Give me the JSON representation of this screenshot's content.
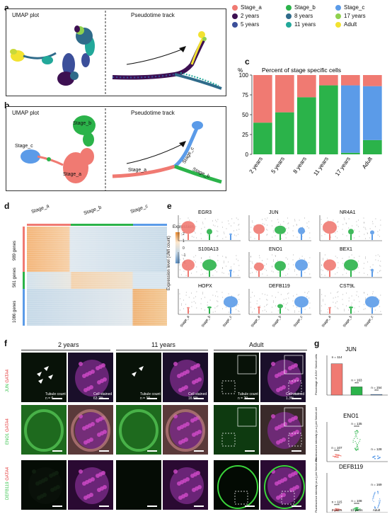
{
  "panels": {
    "a": {
      "label": "a",
      "left_title": "UMAP plot",
      "right_title": "Pseudotime track"
    },
    "b": {
      "label": "b",
      "left_title": "UMAP plot",
      "right_title": "Pseudotime track",
      "umap_labels": [
        "Stage_b",
        "Stage_c",
        "Stage_a"
      ],
      "track_labels": [
        "Stage_a",
        "Stage_c",
        "Stage_b"
      ]
    },
    "c": {
      "label": "c"
    },
    "d": {
      "label": "d",
      "columns": [
        "Stage_a",
        "Stage_b",
        "Stage_c"
      ],
      "row_labels": [
        "989 genes",
        "561 genes",
        "1086 genes"
      ],
      "colorbar_title": "Expression",
      "colorbar_ticks": [
        "2",
        "1",
        "0",
        "-1",
        "-2"
      ]
    },
    "e": {
      "label": "e",
      "ylabel": "Expression level (UMI count)",
      "genes": [
        "EGR3",
        "JUN",
        "NR4A1",
        "S100A13",
        "ENO1",
        "BEX1",
        "HOPX",
        "DEFB119",
        "CST9L"
      ],
      "xticks": [
        "Stage_a",
        "Stage_b",
        "Stage_c"
      ]
    },
    "f": {
      "label": "f",
      "columns": [
        "2 years",
        "11 years",
        "Adult"
      ],
      "row_channels": [
        [
          "GATA4",
          "JUN"
        ],
        [
          "GATA4",
          "ENO1"
        ],
        [
          "GATA4",
          "DEFB119"
        ]
      ],
      "tubule_label": "Tubule count",
      "cell_label": "Cell stained",
      "counts": [
        "n = 6",
        "n = 10",
        "n = 20"
      ],
      "percents": [
        "63.2%",
        "16.6%",
        "1.3%"
      ]
    },
    "g": {
      "label": "g"
    }
  },
  "legend": [
    {
      "label": "Stage_a",
      "color": "#f07a72"
    },
    {
      "label": "Stage_b",
      "color": "#2bb34a"
    },
    {
      "label": "Stage_c",
      "color": "#5b9be8"
    },
    {
      "label": "2 years",
      "color": "#3d1052"
    },
    {
      "label": "8 years",
      "color": "#2f6b8a"
    },
    {
      "label": "17 years",
      "color": "#8fd14f"
    },
    {
      "label": "5 years",
      "color": "#3b4f9a"
    },
    {
      "label": "11 years",
      "color": "#22a89a"
    },
    {
      "label": "Adult",
      "color": "#f2e230"
    }
  ],
  "chart_data": [
    {
      "type": "bar",
      "title": "Percent of stage specific cells",
      "ylabel": "%",
      "categories": [
        "2 years",
        "5 years",
        "8 years",
        "11 years",
        "17 years",
        "Adult"
      ],
      "ylim": [
        0,
        100
      ],
      "yticks": [
        0,
        25,
        50,
        75,
        100
      ],
      "series": [
        {
          "name": "Stage_b",
          "color": "#2bb34a",
          "values": [
            40,
            53,
            72,
            87,
            2,
            18
          ]
        },
        {
          "name": "Stage_c",
          "color": "#5b9be8",
          "values": [
            0,
            0,
            0,
            0,
            85,
            68
          ]
        },
        {
          "name": "Stage_a",
          "color": "#f07a72",
          "values": [
            60,
            47,
            28,
            13,
            13,
            14
          ]
        }
      ]
    },
    {
      "type": "bar",
      "title": "JUN",
      "ylabel": "Percentage of JUN+ Sertoli cells",
      "categories": [
        "2 years",
        "11 years",
        "Adult"
      ],
      "values": [
        63.2,
        16.6,
        1.3
      ],
      "n_labels": [
        "n = 114",
        "n = 163",
        "n = 154"
      ],
      "stars": [
        "",
        "***",
        "***"
      ],
      "colors": [
        "#f07a72",
        "#2bb34a",
        "#5b9be8"
      ]
    },
    {
      "type": "scatter",
      "title": "ENO1",
      "ylabel": "Fluorescence intensity (a.u.) per Sertoli cell",
      "categories": [
        "2 years",
        "11 years",
        "Adult"
      ],
      "n_labels": [
        "n = 107",
        "n = 135",
        "n = 128"
      ],
      "stars": [
        "****",
        "****",
        ""
      ],
      "colors": [
        "#f07a72",
        "#2bb34a",
        "#5b9be8"
      ]
    },
    {
      "type": "scatter",
      "title": "DEFB119",
      "ylabel": "Fluorescence intensity (a.u.) per Sertoli cell",
      "categories": [
        "2 years",
        "11 years",
        "Adult"
      ],
      "n_labels": [
        "n = 115",
        "n = 108",
        "n = 169"
      ],
      "stars": [
        "****",
        "****",
        ""
      ],
      "colors": [
        "#f07a72",
        "#2bb34a",
        "#5b9be8"
      ]
    }
  ]
}
